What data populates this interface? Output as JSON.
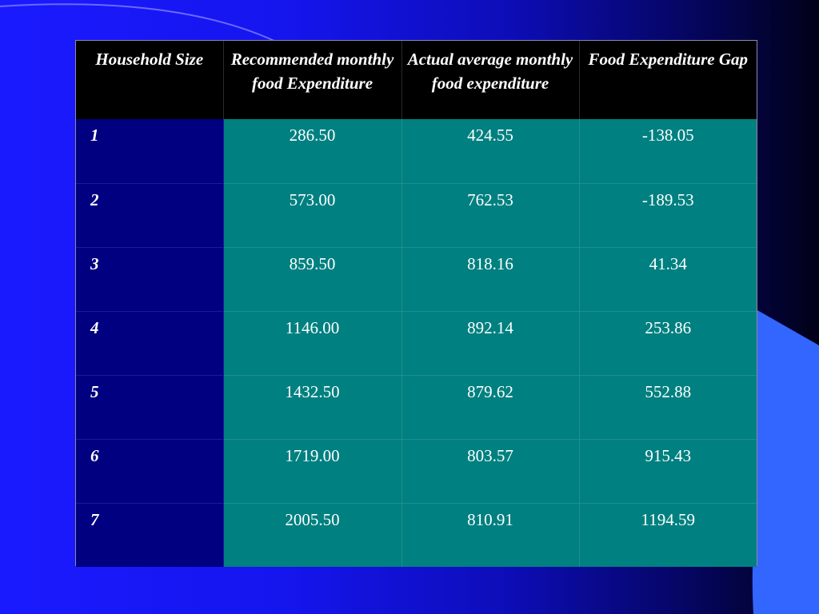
{
  "slide": {
    "colors": {
      "background_left": "#1a1aff",
      "background_right": "#010118",
      "header_bg": "#000000",
      "size_column_bg": "#000080",
      "data_cell_bg": "#008080",
      "text": "#ffffff",
      "accent_shape": "#3366ff"
    }
  },
  "table": {
    "headers": [
      "Household Size",
      "Recommended monthly food Expenditure",
      "Actual average monthly food expenditure",
      "Food Expenditure Gap"
    ],
    "rows": [
      [
        "1",
        "286.50",
        "424.55",
        "-138.05"
      ],
      [
        "2",
        "573.00",
        "762.53",
        "-189.53"
      ],
      [
        "3",
        "859.50",
        "818.16",
        "41.34"
      ],
      [
        "4",
        "1146.00",
        "892.14",
        "253.86"
      ],
      [
        "5",
        "1432.50",
        "879.62",
        "552.88"
      ],
      [
        "6",
        "1719.00",
        "803.57",
        "915.43"
      ],
      [
        "7",
        "2005.50",
        "810.91",
        "1194.59"
      ]
    ]
  }
}
